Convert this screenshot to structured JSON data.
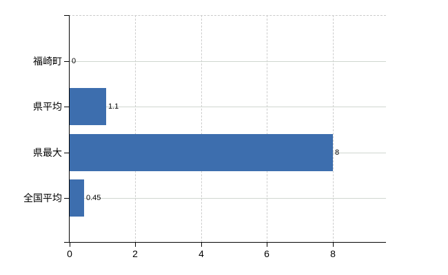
{
  "chart_data": {
    "type": "bar",
    "orientation": "horizontal",
    "title": "",
    "categories": [
      "福崎町",
      "県平均",
      "県最大",
      "全国平均"
    ],
    "values": [
      0,
      1.1,
      8,
      0.45
    ],
    "value_labels": [
      "0",
      "1.1",
      "8",
      "0.45"
    ],
    "x_tick_labels": [
      "0",
      "2",
      "4",
      "6",
      "8"
    ],
    "x_tick_values": [
      0,
      2,
      4,
      6,
      8
    ],
    "xlim": [
      0,
      9.6
    ],
    "grid": true,
    "legend": false,
    "colors": {
      "bar": "#3d6eae",
      "axis": "#000000",
      "grid_horizontal": "#cfd6cf",
      "grid_vertical": "#cccccc",
      "plot_border_top": "#c8c8c8",
      "label_text": "#000000",
      "background": "#ffffff"
    }
  }
}
